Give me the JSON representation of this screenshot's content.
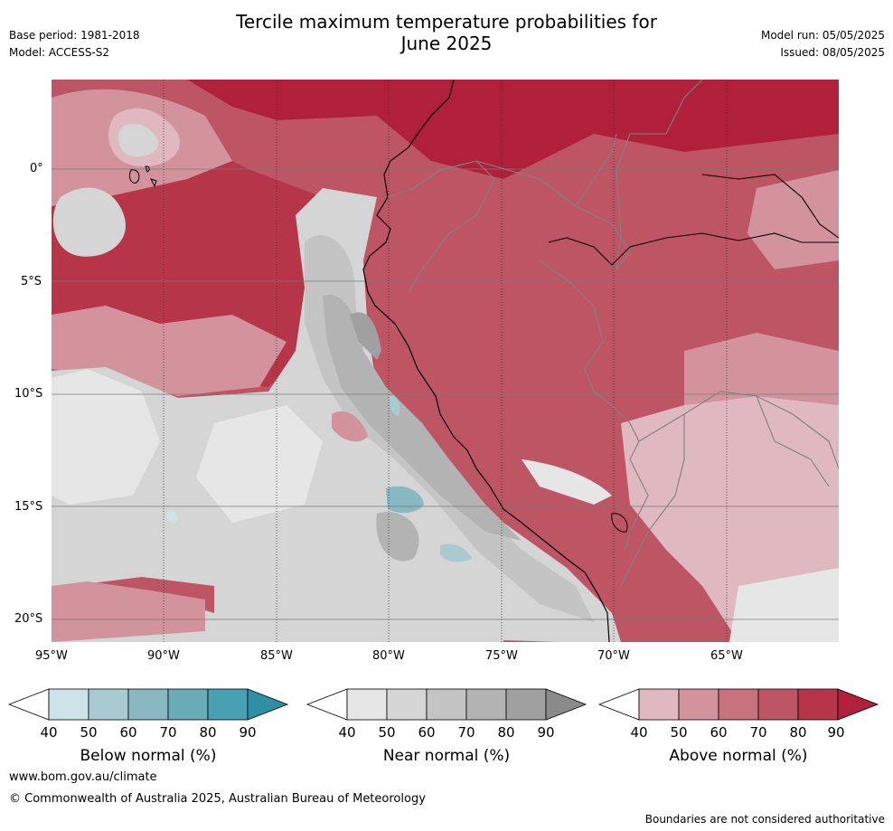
{
  "header": {
    "title_line1": "Tercile maximum temperature probabilities for",
    "title_line2": "June 2025",
    "base_period": "Base period: 1981-2018",
    "model": "Model: ACCESS-S2",
    "model_run": "Model run: 05/05/2025",
    "issued": "Issued: 08/05/2025"
  },
  "map": {
    "region": "western South America and eastern Pacific Ocean",
    "lat_labels": [
      "0°",
      "5°S",
      "10°S",
      "15°S",
      "20°S"
    ],
    "lon_labels": [
      "95°W",
      "90°W",
      "85°W",
      "80°W",
      "75°W",
      "70°W",
      "65°W"
    ]
  },
  "colorbars": [
    {
      "label": "Below normal (%)",
      "ticks": [
        "40",
        "50",
        "60",
        "70",
        "80",
        "90"
      ],
      "colors": [
        "#ffffff",
        "#cde3e8",
        "#a9cad0",
        "#8ab8c2",
        "#6aabb8",
        "#48a0b2",
        "#2f8fa3"
      ]
    },
    {
      "label": "Near normal (%)",
      "ticks": [
        "40",
        "50",
        "60",
        "70",
        "80",
        "90"
      ],
      "colors": [
        "#ffffff",
        "#e6e6e6",
        "#d5d5d5",
        "#c4c4c4",
        "#b3b3b3",
        "#a0a0a0",
        "#8a8a8a"
      ]
    },
    {
      "label": "Above normal (%)",
      "ticks": [
        "40",
        "50",
        "60",
        "70",
        "80",
        "90"
      ],
      "colors": [
        "#ffffff",
        "#e0b8bf",
        "#d3939c",
        "#c8727e",
        "#be5564",
        "#b73548",
        "#b0203a"
      ]
    }
  ],
  "footer": {
    "url": "www.bom.gov.au/climate",
    "copyright": "© Commonwealth of Australia 2025, Australian Bureau of Meteorology",
    "disclaimer": "Boundaries are not considered authoritative"
  }
}
